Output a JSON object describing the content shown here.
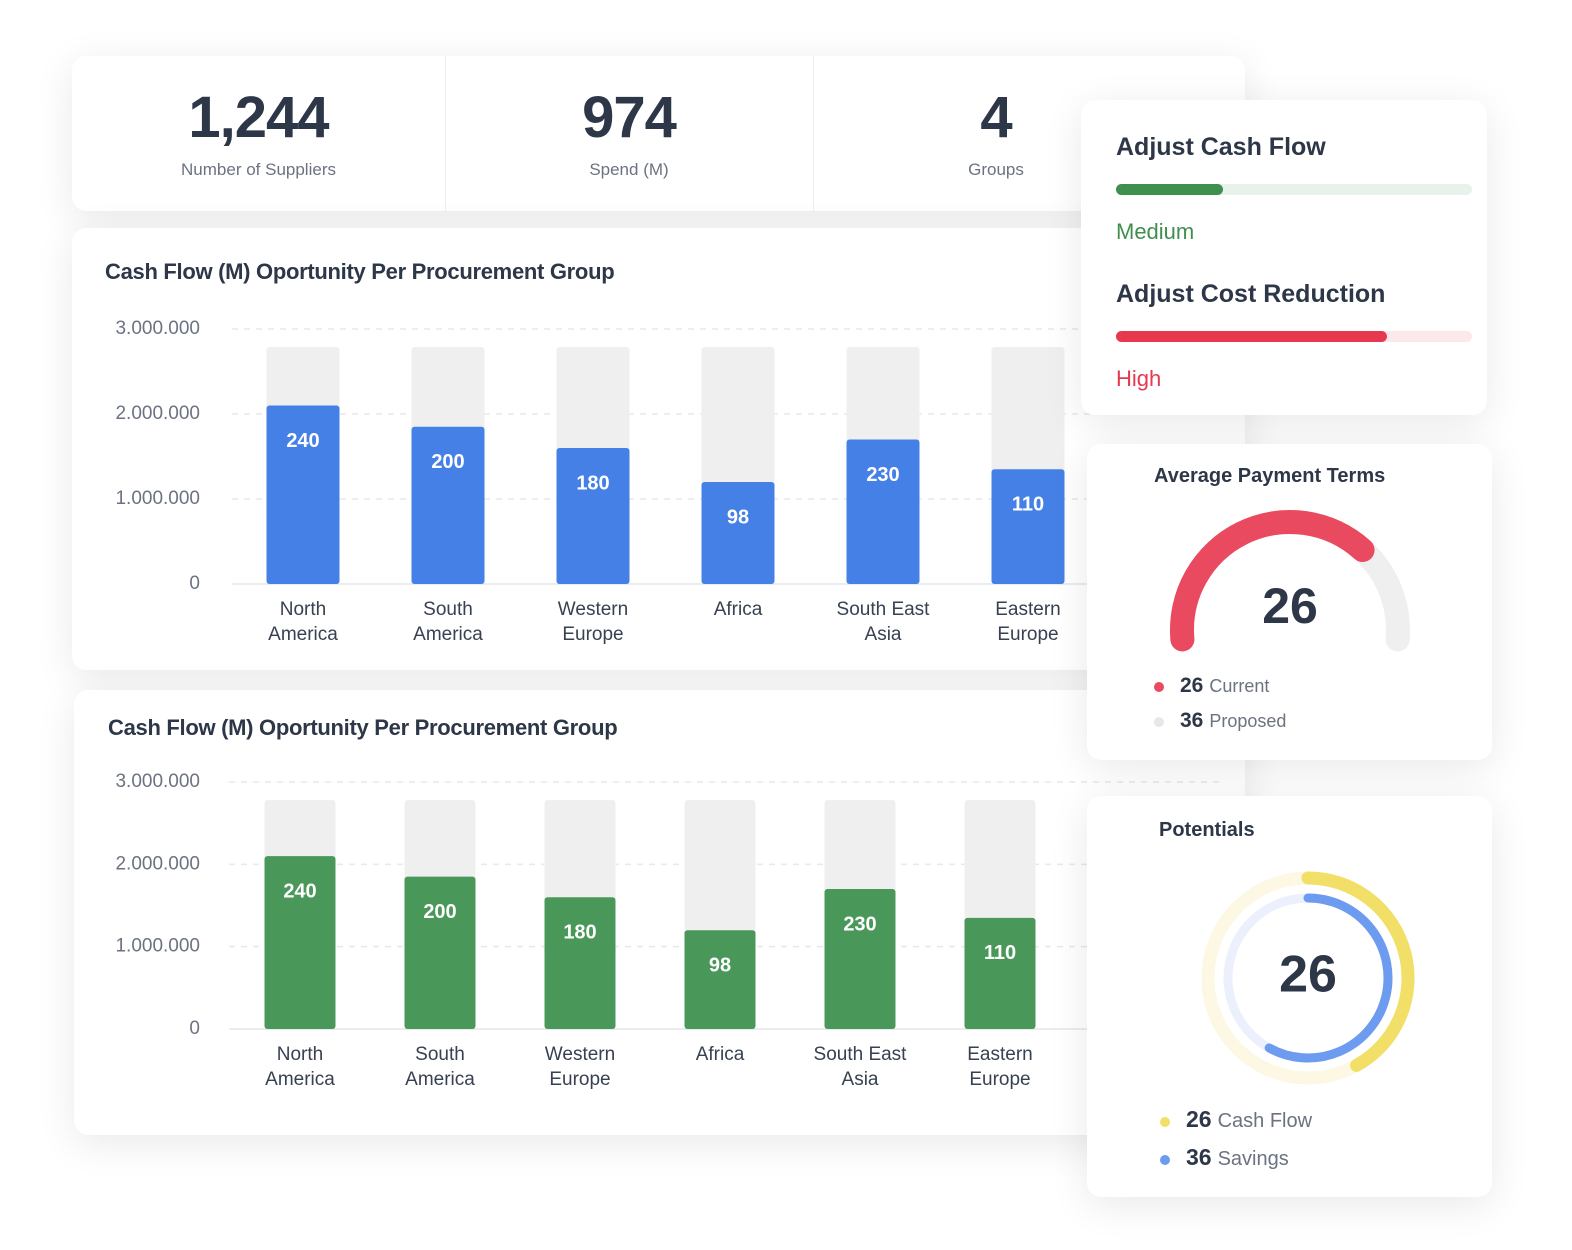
{
  "kpis": [
    {
      "value": "1,244",
      "label": "Number of Suppliers"
    },
    {
      "value": 974,
      "label": "Spend (M)"
    },
    {
      "value": 4,
      "label": "Groups"
    }
  ],
  "chart_data": [
    {
      "type": "bar",
      "title": "Cash Flow (M) Oportunity Per Procurement Group",
      "categories": [
        "North America",
        "South America",
        "Western Europe",
        "Africa",
        "South East Asia",
        "Eastern Europe"
      ],
      "values": [
        2100000,
        1850000,
        1600000,
        1200000,
        1700000,
        1350000
      ],
      "bar_labels": [
        "240",
        "200",
        "180",
        "98",
        "230",
        "110"
      ],
      "color": "#4580e6",
      "ylim": [
        0,
        3000000
      ],
      "yticks": [
        0,
        {
          "value": 1000000,
          "label": "1.000.000"
        },
        {
          "value": 2000000,
          "label": "2.000.000"
        },
        {
          "value": 3000000,
          "label": "3.000.000"
        }
      ],
      "grid": true
    },
    {
      "type": "bar",
      "title": "Cash Flow (M) Oportunity Per Procurement Group",
      "categories": [
        "North America",
        "South America",
        "Western Europe",
        "Africa",
        "South East Asia",
        "Eastern Europe"
      ],
      "values": [
        2100000,
        1850000,
        1600000,
        1200000,
        1700000,
        1350000
      ],
      "bar_labels": [
        "240",
        "200",
        "180",
        "98",
        "230",
        "110"
      ],
      "color": "#4a975a",
      "ylim": [
        0,
        3000000
      ],
      "yticks": [
        0,
        {
          "value": 1000000,
          "label": "1.000.000"
        },
        {
          "value": 2000000,
          "label": "2.000.000"
        },
        {
          "value": 3000000,
          "label": "3.000.000"
        }
      ],
      "grid": true
    }
  ],
  "adjust": [
    {
      "title": "Adjust Cash Flow",
      "level": 30,
      "status": "Medium",
      "color": "#3f8f4f"
    },
    {
      "title": "Adjust Cost Reduction",
      "level": 76,
      "status": "High",
      "color": "#e63950"
    }
  ],
  "payment_terms": {
    "title": "Average Payment Terms",
    "series": [
      {
        "value": 26,
        "name": "Current",
        "color": "#e94a5f"
      },
      {
        "value": 36,
        "name": "Proposed",
        "color": "#e8e8e8"
      }
    ]
  },
  "potentials": {
    "title": "Potentials",
    "series": [
      {
        "value": 26,
        "name": "Cash Flow",
        "color": "#f2df68"
      },
      {
        "value": 36,
        "name": "Savings",
        "color": "#6d9bf0"
      }
    ]
  }
}
